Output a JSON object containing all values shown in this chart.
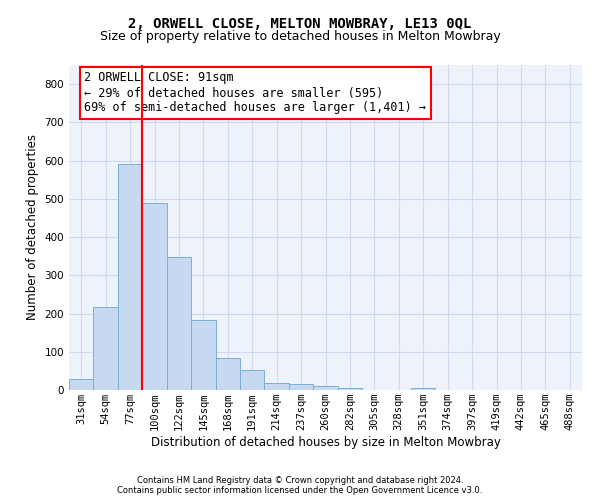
{
  "title": "2, ORWELL CLOSE, MELTON MOWBRAY, LE13 0QL",
  "subtitle": "Size of property relative to detached houses in Melton Mowbray",
  "xlabel": "Distribution of detached houses by size in Melton Mowbray",
  "ylabel": "Number of detached properties",
  "categories": [
    "31sqm",
    "54sqm",
    "77sqm",
    "100sqm",
    "122sqm",
    "145sqm",
    "168sqm",
    "191sqm",
    "214sqm",
    "237sqm",
    "260sqm",
    "282sqm",
    "305sqm",
    "328sqm",
    "351sqm",
    "374sqm",
    "397sqm",
    "419sqm",
    "442sqm",
    "465sqm",
    "488sqm"
  ],
  "values": [
    30,
    218,
    590,
    488,
    347,
    184,
    84,
    52,
    18,
    15,
    10,
    6,
    0,
    0,
    4,
    0,
    0,
    0,
    0,
    0,
    0
  ],
  "bar_color": "#c6d9f0",
  "bar_edge_color": "#7bafd4",
  "vline_x_index": 2.5,
  "vline_color": "red",
  "annotation_text": "2 ORWELL CLOSE: 91sqm\n← 29% of detached houses are smaller (595)\n69% of semi-detached houses are larger (1,401) →",
  "annotation_box_color": "white",
  "annotation_box_edge_color": "red",
  "ylim": [
    0,
    850
  ],
  "yticks": [
    0,
    100,
    200,
    300,
    400,
    500,
    600,
    700,
    800
  ],
  "footer_line1": "Contains HM Land Registry data © Crown copyright and database right 2024.",
  "footer_line2": "Contains public sector information licensed under the Open Government Licence v3.0.",
  "bg_color": "#eef2fb",
  "grid_color": "#d0d8f0",
  "title_fontsize": 10,
  "subtitle_fontsize": 9,
  "annotation_fontsize": 8.5,
  "tick_fontsize": 7.5,
  "axis_label_fontsize": 8.5,
  "footer_fontsize": 6
}
